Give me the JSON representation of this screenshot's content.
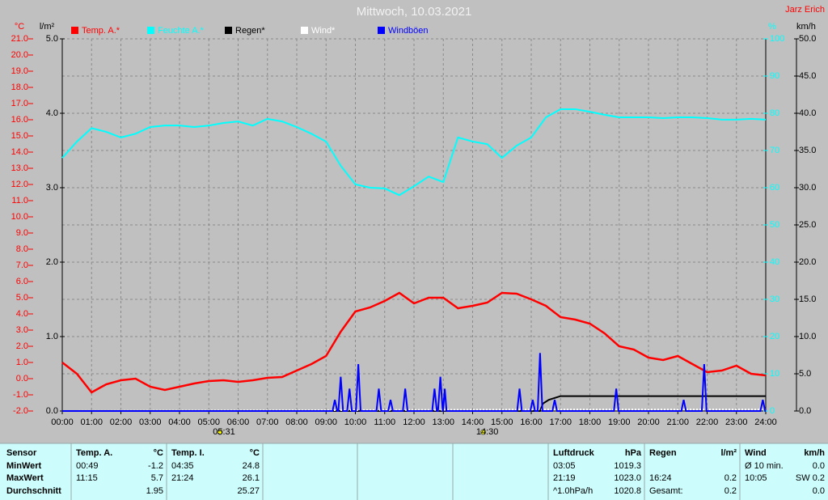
{
  "chart_data": {
    "type": "line",
    "title": "Mittwoch, 10.03.2021",
    "author": "Jarz Erich",
    "xlim": [
      0,
      24
    ],
    "xticks": [
      {
        "value": 0,
        "label": "00:00"
      },
      {
        "value": 1,
        "label": "01:00"
      },
      {
        "value": 2,
        "label": "02:00"
      },
      {
        "value": 3,
        "label": "03:00"
      },
      {
        "value": 4,
        "label": "04:00"
      },
      {
        "value": 5,
        "label": "05:00"
      },
      {
        "value": 6,
        "label": "06:00"
      },
      {
        "value": 7,
        "label": "07:00"
      },
      {
        "value": 8,
        "label": "08:00"
      },
      {
        "value": 9,
        "label": "09:00"
      },
      {
        "value": 10,
        "label": "10:00"
      },
      {
        "value": 11,
        "label": "11:00"
      },
      {
        "value": 12,
        "label": "12:00"
      },
      {
        "value": 13,
        "label": "13:00"
      },
      {
        "value": 14,
        "label": "14:00"
      },
      {
        "value": 15,
        "label": "15:00"
      },
      {
        "value": 16,
        "label": "16:00"
      },
      {
        "value": 17,
        "label": "17:00"
      },
      {
        "value": 18,
        "label": "18:00"
      },
      {
        "value": 19,
        "label": "19:00"
      },
      {
        "value": 20,
        "label": "20:00"
      },
      {
        "value": 21,
        "label": "21:00"
      },
      {
        "value": 22,
        "label": "22:00"
      },
      {
        "value": 23,
        "label": "23:00"
      },
      {
        "value": 24,
        "label": "24:00"
      }
    ],
    "axes": [
      {
        "label": "°C",
        "color": "#ff0000",
        "lim": [
          -2,
          21
        ],
        "ticks": [
          {
            "value": -2,
            "label": "-2.0"
          },
          {
            "value": -1,
            "label": "-1.0"
          },
          {
            "value": 0,
            "label": "0.0"
          },
          {
            "value": 1,
            "label": "1.0"
          },
          {
            "value": 2,
            "label": "2.0"
          },
          {
            "value": 3,
            "label": "3.0"
          },
          {
            "value": 4,
            "label": "4.0"
          },
          {
            "value": 5,
            "label": "5.0"
          },
          {
            "value": 6,
            "label": "6.0"
          },
          {
            "value": 7,
            "label": "7.0"
          },
          {
            "value": 8,
            "label": "8.0"
          },
          {
            "value": 9,
            "label": "9.0"
          },
          {
            "value": 10,
            "label": "10.0"
          },
          {
            "value": 11,
            "label": "11.0"
          },
          {
            "value": 12,
            "label": "12.0"
          },
          {
            "value": 13,
            "label": "13.0"
          },
          {
            "value": 14,
            "label": "14.0"
          },
          {
            "value": 15,
            "label": "15.0"
          },
          {
            "value": 16,
            "label": "16.0"
          },
          {
            "value": 17,
            "label": "17.0"
          },
          {
            "value": 18,
            "label": "18.0"
          },
          {
            "value": 19,
            "label": "19.0"
          },
          {
            "value": 20,
            "label": "20.0"
          },
          {
            "value": 21,
            "label": "21.0"
          }
        ]
      },
      {
        "label": "l/m²",
        "color": "#000000",
        "lim": [
          0,
          5
        ],
        "ticks": [
          {
            "value": 0,
            "label": "0.0"
          },
          {
            "value": 1,
            "label": "1.0"
          },
          {
            "value": 2,
            "label": "2.0"
          },
          {
            "value": 3,
            "label": "3.0"
          },
          {
            "value": 4,
            "label": "4.0"
          },
          {
            "value": 5,
            "label": "5.0"
          }
        ]
      },
      {
        "label": "%",
        "color": "#00ffff",
        "lim": [
          0,
          100
        ],
        "ticks": [
          0,
          10,
          20,
          30,
          40,
          50,
          60,
          70,
          80,
          90,
          100
        ],
        "grid": true
      },
      {
        "label": "km/h",
        "color": "#000000",
        "lim": [
          0,
          50
        ],
        "ticks": [
          {
            "value": 0,
            "label": "0.0"
          },
          {
            "value": 5,
            "label": "5.0"
          },
          {
            "value": 10,
            "label": "10.0"
          },
          {
            "value": 15,
            "label": "15.0"
          },
          {
            "value": 20,
            "label": "20.0"
          },
          {
            "value": 25,
            "label": "25.0"
          },
          {
            "value": 30,
            "label": "30.0"
          },
          {
            "value": 35,
            "label": "35.0"
          },
          {
            "value": 40,
            "label": "40.0"
          },
          {
            "value": 45,
            "label": "45.0"
          },
          {
            "value": 50,
            "label": "50.0"
          }
        ]
      }
    ],
    "x": [
      0,
      0.5,
      1,
      1.5,
      2,
      2.5,
      3,
      3.5,
      4,
      4.5,
      5,
      5.5,
      6,
      6.5,
      7,
      7.5,
      8,
      8.5,
      9,
      9.5,
      10,
      10.5,
      11,
      11.5,
      12,
      12.5,
      13,
      13.5,
      14,
      14.5,
      15,
      15.5,
      16,
      16.5,
      17,
      17.5,
      18,
      18.5,
      19,
      19.5,
      20,
      20.5,
      21,
      21.5,
      22,
      22.5,
      23,
      23.5,
      24
    ],
    "series": [
      {
        "name": "Temp. A.*",
        "color": "#ff0000",
        "axis": 0,
        "values": [
          1.0,
          0.3,
          -0.85,
          -0.35,
          -0.1,
          0.0,
          -0.5,
          -0.7,
          -0.5,
          -0.3,
          -0.15,
          -0.1,
          -0.2,
          -0.1,
          0.05,
          0.1,
          0.5,
          0.9,
          1.4,
          2.9,
          4.15,
          4.4,
          4.8,
          5.3,
          4.65,
          5.0,
          5.0,
          4.35,
          4.5,
          4.7,
          5.3,
          5.25,
          4.9,
          4.5,
          3.8,
          3.65,
          3.4,
          2.8,
          2.0,
          1.8,
          1.3,
          1.15,
          1.4,
          0.9,
          0.4,
          0.5,
          0.8,
          0.3,
          0.2
        ]
      },
      {
        "name": "Feuchte A.*",
        "color": "#00ffff",
        "axis": 2,
        "values": [
          68,
          72.4,
          76,
          75,
          73.5,
          74.5,
          76.3,
          76.7,
          76.7,
          76.3,
          76.7,
          77.4,
          77.8,
          76.7,
          78.5,
          77.8,
          76.3,
          74.5,
          72.4,
          65.9,
          60.9,
          60,
          59.8,
          58,
          60.4,
          63,
          61.5,
          73.5,
          72.4,
          71.7,
          68,
          71.3,
          73.5,
          78.9,
          81.1,
          81.1,
          80.4,
          79.6,
          78.9,
          78.9,
          78.9,
          78.7,
          78.9,
          78.9,
          78.7,
          78.3,
          78.3,
          78.5,
          78.3
        ]
      },
      {
        "name": "Regen*",
        "color": "#000000",
        "axis": 1,
        "x": [
          0,
          16.3,
          16.4,
          16.6,
          17,
          24
        ],
        "values": [
          0,
          0,
          0.1,
          0.15,
          0.2,
          0.2
        ]
      },
      {
        "name": "Wind*",
        "color": "#ffffff",
        "axis": 3,
        "x": [
          0,
          16.5,
          24
        ],
        "values": [
          0,
          0.2,
          0.2
        ]
      },
      {
        "name": "Windböen",
        "color": "#0000ff",
        "axis": 3,
        "x": [
          0,
          9.22,
          9.3,
          9.38,
          9.42,
          9.5,
          9.58,
          9.72,
          9.8,
          9.88,
          10.02,
          10.1,
          10.18,
          10.72,
          10.8,
          10.88,
          11.12,
          11.2,
          11.28,
          11.62,
          11.7,
          11.78,
          12.62,
          12.7,
          12.78,
          12.82,
          12.9,
          12.98,
          12.99,
          13.05,
          13.11,
          15.52,
          15.6,
          15.68,
          15.97,
          16.05,
          16.13,
          16.22,
          16.3,
          16.38,
          16.72,
          16.8,
          16.88,
          18.82,
          18.9,
          18.98,
          21.12,
          21.2,
          21.28,
          21.82,
          21.9,
          21.98,
          23.82,
          23.9,
          23.98,
          24
        ],
        "values": [
          0,
          0,
          1.5,
          0,
          0,
          4.6,
          0,
          0,
          3.0,
          0,
          0,
          6.3,
          0,
          0,
          3.0,
          0,
          0,
          1.5,
          0,
          0,
          3.0,
          0,
          0,
          3.0,
          0,
          0,
          4.6,
          0,
          0,
          3.0,
          0,
          0,
          3.0,
          0,
          0,
          1.5,
          0,
          0,
          7.8,
          0,
          0,
          1.5,
          0,
          0,
          3.0,
          0,
          0,
          1.5,
          0,
          0,
          6.3,
          0,
          0,
          1.5,
          0,
          0
        ]
      }
    ],
    "annotations": [
      {
        "text": "05:31",
        "x": 5.517
      },
      {
        "text": "14:30",
        "x": 14.5
      }
    ]
  },
  "stats_table": {
    "row_labels": [
      "Sensor",
      "MinWert",
      "MaxWert",
      "Durchschnitt"
    ],
    "blocks": [
      {
        "header": [
          "Temp. A.",
          "°C"
        ],
        "rows": [
          [
            "00:49",
            "-1.2"
          ],
          [
            "11:15",
            "5.7"
          ],
          [
            "1.95"
          ]
        ]
      },
      {
        "header": [
          "Temp. I.",
          "°C"
        ],
        "rows": [
          [
            "04:35",
            "24.8"
          ],
          [
            "21:24",
            "26.1"
          ],
          [
            "25.27"
          ]
        ]
      },
      {
        "header": [
          "Luftdruck",
          "hPa"
        ],
        "rows": [
          [
            "03:05",
            "1019.3"
          ],
          [
            "21:19",
            "1023.0"
          ],
          [
            "^1.0hPa/h",
            "1020.8"
          ]
        ]
      },
      {
        "header": [
          "Regen",
          "l/m²"
        ],
        "rows": [
          [],
          [
            "16:24",
            "0.2"
          ],
          [
            "Gesamt:",
            "0.2"
          ]
        ]
      },
      {
        "header": [
          "Wind",
          "km/h"
        ],
        "rows": [
          [
            "Ø 10 min.",
            "0.0"
          ],
          [
            "10:05",
            "SW 0.2"
          ],
          [
            "0.0"
          ]
        ]
      }
    ]
  }
}
